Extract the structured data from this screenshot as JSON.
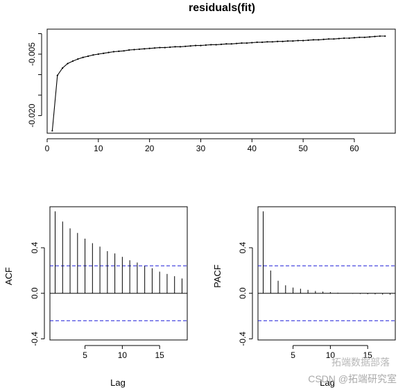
{
  "watermark": {
    "line1": "拓端数据部落",
    "line2": "CSDN @拓端研究室"
  },
  "chart_data": [
    {
      "type": "line",
      "title": "residuals(fit)",
      "xlabel": "",
      "ylabel": "",
      "xlim": [
        0,
        68
      ],
      "ylim": [
        -0.0243,
        0.0011
      ],
      "xticks": [
        0,
        10,
        20,
        30,
        40,
        50,
        60
      ],
      "yticks": [
        -0.02,
        -0.015,
        -0.01,
        -0.005,
        0.0
      ],
      "ytick_labels": [
        "-0.020",
        "",
        "",
        "-0.005",
        ""
      ],
      "points_marked": true,
      "color": "#000000",
      "x": [
        1,
        2,
        3,
        4,
        5,
        6,
        7,
        8,
        9,
        10,
        11,
        12,
        13,
        14,
        15,
        16,
        17,
        18,
        19,
        20,
        21,
        22,
        23,
        24,
        25,
        26,
        27,
        28,
        29,
        30,
        31,
        32,
        33,
        34,
        35,
        36,
        37,
        38,
        39,
        40,
        41,
        42,
        43,
        44,
        45,
        46,
        47,
        48,
        49,
        50,
        51,
        52,
        53,
        54,
        55,
        56,
        57,
        58,
        59,
        60,
        61,
        62,
        63,
        64,
        65,
        66
      ],
      "y": [
        -0.0237,
        -0.0102,
        -0.0084,
        -0.0073,
        -0.0067,
        -0.0062,
        -0.0058,
        -0.0055,
        -0.0052,
        -0.005,
        -0.0048,
        -0.0046,
        -0.0044,
        -0.0043,
        -0.0042,
        -0.004,
        -0.0039,
        -0.0038,
        -0.0037,
        -0.0036,
        -0.0035,
        -0.0034,
        -0.0034,
        -0.0033,
        -0.0032,
        -0.0032,
        -0.0031,
        -0.003,
        -0.0029,
        -0.0029,
        -0.0028,
        -0.0027,
        -0.0027,
        -0.0026,
        -0.0025,
        -0.0025,
        -0.0024,
        -0.0023,
        -0.0023,
        -0.0022,
        -0.0021,
        -0.0021,
        -0.002,
        -0.002,
        -0.0019,
        -0.0019,
        -0.0018,
        -0.0018,
        -0.0017,
        -0.0017,
        -0.0016,
        -0.0015,
        -0.0015,
        -0.0014,
        -0.0013,
        -0.0013,
        -0.0012,
        -0.0011,
        -0.0011,
        -0.001,
        -0.0009,
        -0.0009,
        -0.0008,
        -0.0007,
        -0.0006,
        -0.0006
      ]
    },
    {
      "type": "bar",
      "title": "",
      "xlabel": "Lag",
      "ylabel": "ACF",
      "xlim": [
        0.3,
        18.7
      ],
      "ylim": [
        -0.41,
        0.76
      ],
      "xticks": [
        5,
        10,
        15
      ],
      "yticks": [
        -0.4,
        0.0,
        0.4
      ],
      "ytick_labels": [
        "-0.4",
        "0.0",
        "0.4"
      ],
      "confidence_bound": 0.241,
      "lags": [
        1,
        2,
        3,
        4,
        5,
        6,
        7,
        8,
        9,
        10,
        11,
        12,
        13,
        14,
        15,
        16,
        17,
        18
      ],
      "values": [
        0.72,
        0.63,
        0.57,
        0.53,
        0.48,
        0.44,
        0.41,
        0.37,
        0.35,
        0.32,
        0.29,
        0.27,
        0.24,
        0.22,
        0.19,
        0.17,
        0.15,
        0.13
      ]
    },
    {
      "type": "bar",
      "title": "",
      "xlabel": "Lag",
      "ylabel": "PACF",
      "xlim": [
        0.3,
        18.7
      ],
      "ylim": [
        -0.41,
        0.76
      ],
      "xticks": [
        5,
        10,
        15
      ],
      "yticks": [
        -0.4,
        0.0,
        0.4
      ],
      "ytick_labels": [
        "-0.4",
        "0.0",
        "0.4"
      ],
      "confidence_bound": 0.241,
      "lags": [
        1,
        2,
        3,
        4,
        5,
        6,
        7,
        8,
        9,
        10,
        11,
        12,
        13,
        14,
        15,
        16,
        17,
        18
      ],
      "values": [
        0.72,
        0.2,
        0.11,
        0.07,
        0.05,
        0.04,
        0.03,
        0.02,
        0.015,
        0.01,
        0.005,
        0.0,
        -0.004,
        -0.006,
        -0.008,
        -0.009,
        -0.011,
        -0.012
      ]
    }
  ]
}
